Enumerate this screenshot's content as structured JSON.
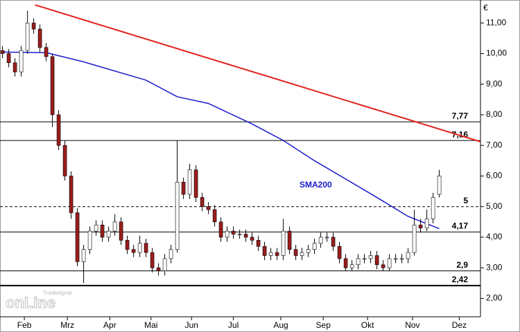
{
  "chart_data": {
    "type": "candlestick",
    "currency": "€",
    "annotation": "SMA200",
    "brand": {
      "small": "Tradesignal",
      "large": "onLine"
    },
    "xlim": [
      -0.4,
      76.6
    ],
    "xticks": [
      {
        "value": 3.5,
        "label": "Feb"
      },
      {
        "value": 10.4,
        "label": "Mrz"
      },
      {
        "value": 17.2,
        "label": "Apr"
      },
      {
        "value": 23.8,
        "label": "Mai"
      },
      {
        "value": 30.3,
        "label": "Jun"
      },
      {
        "value": 37,
        "label": "Jul"
      },
      {
        "value": 44.6,
        "label": "Aug"
      },
      {
        "value": 51.4,
        "label": "Sep"
      },
      {
        "value": 58.5,
        "label": "Okt"
      },
      {
        "value": 65.7,
        "label": "Nov"
      },
      {
        "value": 73.2,
        "label": "Dez"
      }
    ],
    "ylim": [
      1.4,
      11.66
    ],
    "yticks": [
      {
        "value": 2,
        "label": "2,00"
      },
      {
        "value": 3,
        "label": "3,00"
      },
      {
        "value": 4,
        "label": "4,00"
      },
      {
        "value": 5,
        "label": "5,00"
      },
      {
        "value": 6,
        "label": "6,00"
      },
      {
        "value": 7,
        "label": "7,00"
      },
      {
        "value": 8,
        "label": "8,00"
      },
      {
        "value": 9,
        "label": "9,00"
      },
      {
        "value": 10,
        "label": "10,00"
      },
      {
        "value": 11,
        "label": "11,00"
      }
    ],
    "up_color": "#ffffff",
    "down_color": "#9b1c1c",
    "open": [
      10.1,
      10.0,
      9.7,
      9.4,
      10.1,
      11.0,
      10.8,
      10.2,
      9.9,
      8.0,
      7.0,
      6.0,
      4.8,
      3.2,
      3.6,
      4.2,
      4.4,
      4.0,
      4.2,
      4.5,
      3.9,
      3.6,
      3.5,
      3.8,
      3.5,
      3.0,
      2.9,
      3.3,
      3.6,
      5.8,
      5.4,
      6.2,
      5.3,
      5.0,
      4.9,
      4.5,
      4.0,
      4.2,
      4.1,
      4.1,
      4.0,
      3.9,
      3.7,
      3.4,
      3.5,
      3.4,
      4.2,
      3.6,
      3.4,
      3.5,
      3.6,
      3.8,
      4.0,
      4.0,
      3.7,
      3.3,
      3.0,
      3.1,
      3.3,
      3.3,
      3.4,
      3.1,
      3.0,
      3.3,
      3.3,
      3.3,
      3.5,
      4.4,
      4.3,
      4.6,
      5.4
    ],
    "high": [
      10.25,
      10.15,
      9.85,
      10.25,
      11.4,
      11.15,
      10.95,
      10.35,
      10.0,
      8.15,
      7.15,
      6.15,
      4.95,
      3.75,
      4.35,
      4.55,
      4.55,
      4.35,
      4.75,
      4.65,
      4.05,
      3.75,
      4.05,
      3.95,
      3.65,
      3.15,
      3.45,
      3.75,
      7.16,
      5.95,
      6.4,
      6.35,
      5.45,
      5.15,
      5.05,
      4.65,
      4.35,
      4.35,
      4.25,
      4.25,
      4.15,
      4.05,
      3.85,
      3.65,
      3.65,
      4.6,
      4.35,
      3.75,
      3.65,
      3.75,
      3.95,
      4.15,
      4.15,
      4.15,
      3.85,
      3.45,
      3.25,
      3.45,
      3.45,
      3.55,
      3.55,
      3.25,
      3.45,
      3.45,
      3.45,
      3.65,
      4.9,
      4.6,
      4.9,
      5.45,
      6.2
    ],
    "low": [
      9.85,
      9.55,
      9.25,
      9.25,
      10.0,
      10.65,
      10.05,
      9.75,
      7.6,
      6.85,
      5.85,
      4.6,
      3.05,
      2.5,
      3.45,
      4.05,
      3.85,
      3.85,
      4.05,
      3.75,
      3.45,
      3.35,
      3.35,
      3.35,
      2.85,
      2.75,
      2.75,
      3.15,
      3.5,
      5.25,
      5.25,
      5.15,
      4.85,
      4.75,
      4.35,
      3.85,
      3.85,
      3.95,
      3.95,
      3.85,
      3.75,
      3.55,
      3.25,
      3.25,
      3.25,
      3.25,
      3.45,
      3.25,
      3.25,
      3.35,
      3.45,
      3.65,
      3.85,
      3.55,
      3.15,
      2.9,
      2.9,
      2.95,
      3.15,
      3.15,
      2.95,
      2.9,
      2.9,
      3.15,
      3.15,
      3.15,
      3.4,
      4.15,
      4.2,
      4.45,
      5.3
    ],
    "close": [
      10.0,
      9.7,
      9.4,
      10.1,
      11.0,
      10.8,
      10.2,
      9.9,
      8.0,
      7.0,
      6.0,
      4.8,
      3.2,
      3.6,
      4.2,
      4.4,
      4.0,
      4.2,
      4.5,
      3.9,
      3.6,
      3.5,
      3.8,
      3.5,
      3.0,
      2.9,
      3.3,
      3.6,
      5.8,
      5.4,
      6.2,
      5.3,
      5.0,
      4.9,
      4.5,
      4.0,
      4.2,
      4.1,
      4.1,
      4.0,
      3.9,
      3.7,
      3.4,
      3.5,
      3.4,
      4.2,
      3.6,
      3.4,
      3.5,
      3.6,
      3.8,
      4.0,
      4.0,
      3.7,
      3.3,
      3.0,
      3.1,
      3.3,
      3.3,
      3.4,
      3.1,
      3.0,
      3.3,
      3.3,
      3.3,
      3.5,
      4.4,
      4.3,
      4.6,
      5.3,
      6.0
    ],
    "sma": {
      "color": "#1a1acc",
      "x": [
        0,
        7,
        13,
        23,
        28,
        33,
        40,
        45,
        50,
        55,
        60,
        65,
        70
      ],
      "values": [
        10.05,
        10.03,
        9.73,
        9.13,
        8.59,
        8.37,
        7.7,
        7.16,
        6.5,
        5.9,
        5.3,
        4.68,
        4.28
      ]
    },
    "trendline": {
      "color": "#e0231b",
      "x": [
        5.2,
        76.6
      ],
      "values": [
        11.59,
        7.12
      ]
    },
    "levels": [
      {
        "value": 7.77,
        "label": "7,77"
      },
      {
        "value": 7.16,
        "label": "7,16"
      },
      {
        "value": 5,
        "label": "5",
        "dashed": true
      },
      {
        "value": 4.17,
        "label": "4,17"
      },
      {
        "value": 2.9,
        "label": "2,9"
      },
      {
        "value": 2.42,
        "label": "2,42",
        "bold": true
      }
    ]
  }
}
